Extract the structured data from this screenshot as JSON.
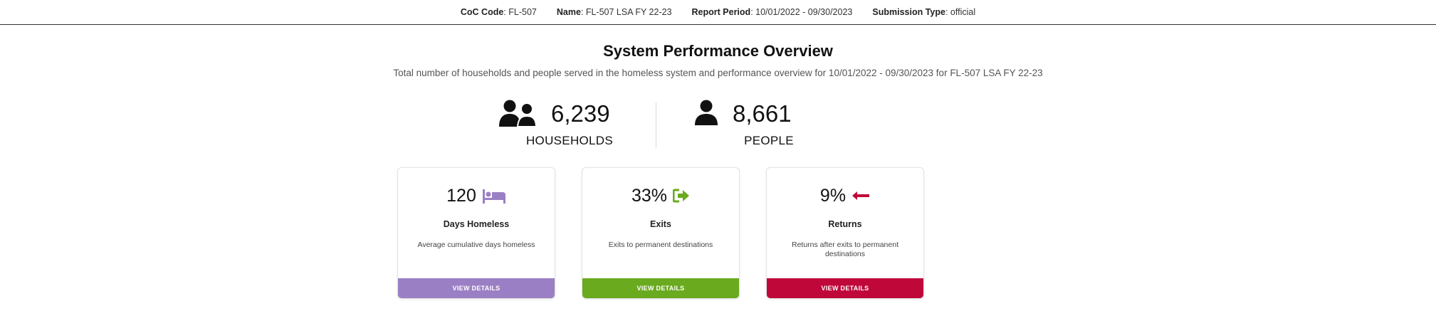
{
  "header": {
    "coc_code_label": "CoC Code",
    "coc_code_value": ": FL-507",
    "name_label": "Name",
    "name_value": ": FL-507 LSA FY 22-23",
    "report_period_label": "Report Period",
    "report_period_value": ": 10/01/2022 - 09/30/2023",
    "submission_type_label": "Submission Type",
    "submission_type_value": ": official"
  },
  "overview": {
    "title": "System Performance Overview",
    "subtitle": "Total number of households and people served in the homeless system and performance overview for 10/01/2022 - 09/30/2023 for FL-507 LSA FY 22-23"
  },
  "totals": {
    "households": {
      "value": "6,239",
      "label": "HOUSEHOLDS",
      "icon": "users-icon"
    },
    "people": {
      "value": "8,661",
      "label": "PEOPLE",
      "icon": "user-icon"
    }
  },
  "cards": [
    {
      "value": "120",
      "icon": "bed-icon",
      "title": "Days Homeless",
      "description": "Average cumulative days homeless",
      "button": "VIEW DETAILS",
      "color": "#9b7fc4"
    },
    {
      "value": "33%",
      "icon": "exit-arrow-icon",
      "title": "Exits",
      "description": "Exits to permanent destinations",
      "button": "VIEW DETAILS",
      "color": "#6aaa1e"
    },
    {
      "value": "9%",
      "icon": "left-arrow-icon",
      "title": "Returns",
      "description": "Returns after exits to permanent destinations",
      "button": "VIEW DETAILS",
      "color": "#c0073a"
    }
  ]
}
